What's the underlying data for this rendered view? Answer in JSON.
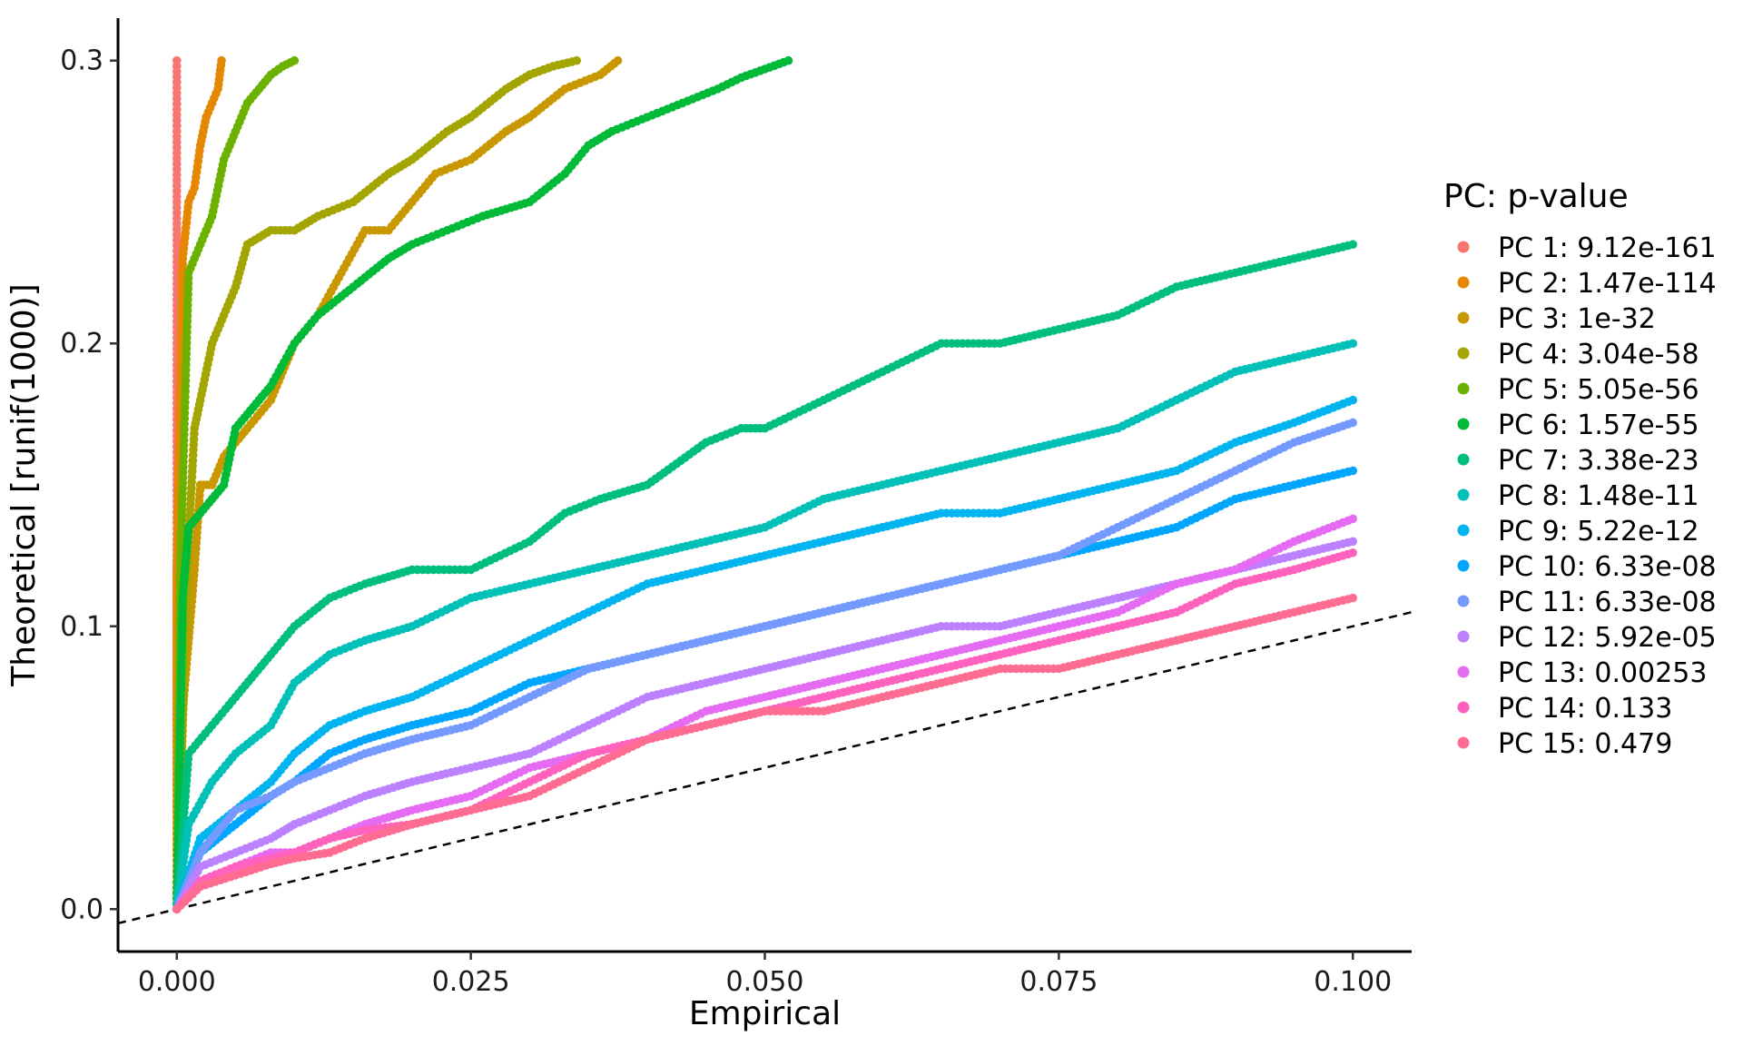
{
  "chart_data": {
    "type": "scatter",
    "title": "",
    "xlabel": "Empirical",
    "ylabel": "Theoretical [runif(1000)]",
    "xlim": [
      -0.005,
      0.105
    ],
    "ylim": [
      -0.015,
      0.315
    ],
    "x_ticks": [
      0,
      0.025,
      0.05,
      0.075,
      0.1
    ],
    "x_tick_labels": [
      "0.000",
      "0.025",
      "0.050",
      "0.075",
      "0.100"
    ],
    "y_ticks": [
      0,
      0.1,
      0.2,
      0.3
    ],
    "y_tick_labels": [
      "0.0",
      "0.1",
      "0.2",
      "0.3"
    ],
    "grid": false,
    "legend_title": "PC: p-value",
    "legend_position": "right",
    "reference_line": {
      "style": "dashed",
      "slope": 1,
      "intercept": 0
    },
    "series": [
      {
        "name": "PC 1: 9.12e-161",
        "color": "#F8766D",
        "x": [
          0,
          0,
          0,
          0,
          0,
          0,
          0
        ],
        "y": [
          0,
          0.05,
          0.1,
          0.15,
          0.2,
          0.25,
          0.3
        ]
      },
      {
        "name": "PC 2: 1.47e-114",
        "color": "#E58700",
        "x": [
          0,
          0,
          0.0005,
          0.001,
          0.0015,
          0.002,
          0.0025,
          0.003,
          0.0035,
          0.0038
        ],
        "y": [
          0,
          0.12,
          0.23,
          0.25,
          0.255,
          0.27,
          0.28,
          0.285,
          0.29,
          0.3
        ]
      },
      {
        "name": "PC 3: 1e-32",
        "color": "#C99800",
        "x": [
          0,
          0.0005,
          0.0015,
          0.002,
          0.003,
          0.004,
          0.005,
          0.006,
          0.008,
          0.01,
          0.012,
          0.014,
          0.016,
          0.018,
          0.02,
          0.022,
          0.025,
          0.028,
          0.03,
          0.033,
          0.036,
          0.0375
        ],
        "y": [
          0,
          0.07,
          0.12,
          0.15,
          0.15,
          0.16,
          0.165,
          0.17,
          0.18,
          0.2,
          0.21,
          0.225,
          0.24,
          0.24,
          0.25,
          0.26,
          0.265,
          0.275,
          0.28,
          0.29,
          0.295,
          0.3
        ]
      },
      {
        "name": "PC 4: 3.04e-58",
        "color": "#A3A500",
        "x": [
          0,
          0.001,
          0.0015,
          0.002,
          0.003,
          0.004,
          0.005,
          0.006,
          0.008,
          0.01,
          0.012,
          0.015,
          0.018,
          0.02,
          0.023,
          0.025,
          0.028,
          0.03,
          0.032,
          0.034
        ],
        "y": [
          0,
          0.13,
          0.17,
          0.18,
          0.2,
          0.21,
          0.22,
          0.235,
          0.24,
          0.24,
          0.245,
          0.25,
          0.26,
          0.265,
          0.275,
          0.28,
          0.29,
          0.295,
          0.298,
          0.3
        ]
      },
      {
        "name": "PC 5: 5.05e-56",
        "color": "#6BB100",
        "x": [
          0,
          0.0003,
          0.001,
          0.002,
          0.003,
          0.004,
          0.005,
          0.006,
          0.007,
          0.008,
          0.009,
          0.01
        ],
        "y": [
          0,
          0.12,
          0.225,
          0.235,
          0.245,
          0.265,
          0.275,
          0.285,
          0.29,
          0.295,
          0.298,
          0.3
        ]
      },
      {
        "name": "PC 6: 1.57e-55",
        "color": "#00BA38",
        "x": [
          0,
          0.0005,
          0.001,
          0.002,
          0.003,
          0.004,
          0.005,
          0.006,
          0.007,
          0.008,
          0.01,
          0.012,
          0.015,
          0.018,
          0.02,
          0.023,
          0.026,
          0.03,
          0.033,
          0.035,
          0.037,
          0.04,
          0.043,
          0.046,
          0.048,
          0.05,
          0.052
        ],
        "y": [
          0,
          0.11,
          0.135,
          0.14,
          0.145,
          0.15,
          0.17,
          0.175,
          0.18,
          0.185,
          0.2,
          0.21,
          0.22,
          0.23,
          0.235,
          0.24,
          0.245,
          0.25,
          0.26,
          0.27,
          0.275,
          0.28,
          0.285,
          0.29,
          0.294,
          0.297,
          0.3
        ]
      },
      {
        "name": "PC 7: 3.38e-23",
        "color": "#00BF7D",
        "x": [
          0,
          0.001,
          0.003,
          0.005,
          0.008,
          0.01,
          0.013,
          0.016,
          0.02,
          0.025,
          0.03,
          0.033,
          0.036,
          0.04,
          0.045,
          0.048,
          0.05,
          0.055,
          0.06,
          0.065,
          0.07,
          0.075,
          0.08,
          0.085,
          0.09,
          0.095,
          0.1
        ],
        "y": [
          0,
          0.055,
          0.065,
          0.075,
          0.09,
          0.1,
          0.11,
          0.115,
          0.12,
          0.12,
          0.13,
          0.14,
          0.145,
          0.15,
          0.165,
          0.17,
          0.17,
          0.18,
          0.19,
          0.2,
          0.2,
          0.205,
          0.21,
          0.22,
          0.225,
          0.23,
          0.235
        ]
      },
      {
        "name": "PC 8: 1.48e-11",
        "color": "#00C0B8",
        "x": [
          0,
          0.001,
          0.003,
          0.005,
          0.008,
          0.01,
          0.013,
          0.016,
          0.02,
          0.025,
          0.03,
          0.035,
          0.04,
          0.045,
          0.05,
          0.055,
          0.06,
          0.065,
          0.07,
          0.075,
          0.08,
          0.085,
          0.09,
          0.095,
          0.1
        ],
        "y": [
          0,
          0.03,
          0.045,
          0.055,
          0.065,
          0.08,
          0.09,
          0.095,
          0.1,
          0.11,
          0.115,
          0.12,
          0.125,
          0.13,
          0.135,
          0.145,
          0.15,
          0.155,
          0.16,
          0.165,
          0.17,
          0.18,
          0.19,
          0.195,
          0.2
        ]
      },
      {
        "name": "PC 9: 5.22e-12",
        "color": "#00B4EF",
        "x": [
          0,
          0.002,
          0.005,
          0.008,
          0.01,
          0.013,
          0.016,
          0.02,
          0.025,
          0.03,
          0.035,
          0.04,
          0.045,
          0.05,
          0.055,
          0.06,
          0.065,
          0.07,
          0.075,
          0.08,
          0.085,
          0.09,
          0.095,
          0.1
        ],
        "y": [
          0,
          0.025,
          0.035,
          0.045,
          0.055,
          0.065,
          0.07,
          0.075,
          0.085,
          0.095,
          0.105,
          0.115,
          0.12,
          0.125,
          0.13,
          0.135,
          0.14,
          0.14,
          0.145,
          0.15,
          0.155,
          0.165,
          0.172,
          0.18
        ]
      },
      {
        "name": "PC 10: 6.33e-08",
        "color": "#00A5FF",
        "x": [
          0,
          0.002,
          0.005,
          0.008,
          0.01,
          0.013,
          0.016,
          0.02,
          0.025,
          0.03,
          0.035,
          0.04,
          0.045,
          0.05,
          0.055,
          0.06,
          0.065,
          0.07,
          0.075,
          0.08,
          0.085,
          0.09,
          0.095,
          0.1
        ],
        "y": [
          0,
          0.02,
          0.03,
          0.04,
          0.045,
          0.055,
          0.06,
          0.065,
          0.07,
          0.08,
          0.085,
          0.09,
          0.095,
          0.1,
          0.105,
          0.11,
          0.115,
          0.12,
          0.125,
          0.13,
          0.135,
          0.145,
          0.15,
          0.155
        ]
      },
      {
        "name": "PC 11: 6.33e-08",
        "color": "#7499FF",
        "x": [
          0,
          0.002,
          0.005,
          0.008,
          0.01,
          0.013,
          0.016,
          0.02,
          0.025,
          0.03,
          0.035,
          0.04,
          0.045,
          0.05,
          0.055,
          0.06,
          0.065,
          0.07,
          0.075,
          0.08,
          0.085,
          0.09,
          0.095,
          0.1
        ],
        "y": [
          0,
          0.02,
          0.035,
          0.04,
          0.045,
          0.05,
          0.055,
          0.06,
          0.065,
          0.075,
          0.085,
          0.09,
          0.095,
          0.1,
          0.105,
          0.11,
          0.115,
          0.12,
          0.125,
          0.135,
          0.145,
          0.155,
          0.165,
          0.172
        ]
      },
      {
        "name": "PC 12: 5.92e-05",
        "color": "#BB81FF",
        "x": [
          0,
          0.002,
          0.005,
          0.008,
          0.01,
          0.013,
          0.016,
          0.02,
          0.025,
          0.03,
          0.035,
          0.04,
          0.045,
          0.05,
          0.055,
          0.06,
          0.065,
          0.07,
          0.075,
          0.08,
          0.085,
          0.09,
          0.095,
          0.1
        ],
        "y": [
          0,
          0.015,
          0.02,
          0.025,
          0.03,
          0.035,
          0.04,
          0.045,
          0.05,
          0.055,
          0.065,
          0.075,
          0.08,
          0.085,
          0.09,
          0.095,
          0.1,
          0.1,
          0.105,
          0.11,
          0.115,
          0.12,
          0.125,
          0.13
        ]
      },
      {
        "name": "PC 13: 0.00253",
        "color": "#E66BF3",
        "x": [
          0,
          0.002,
          0.005,
          0.008,
          0.01,
          0.013,
          0.016,
          0.02,
          0.025,
          0.03,
          0.035,
          0.04,
          0.045,
          0.05,
          0.055,
          0.06,
          0.065,
          0.07,
          0.075,
          0.08,
          0.085,
          0.09,
          0.095,
          0.1
        ],
        "y": [
          0,
          0.01,
          0.015,
          0.02,
          0.02,
          0.025,
          0.03,
          0.035,
          0.04,
          0.05,
          0.055,
          0.06,
          0.07,
          0.075,
          0.08,
          0.085,
          0.09,
          0.095,
          0.1,
          0.105,
          0.115,
          0.12,
          0.13,
          0.138
        ]
      },
      {
        "name": "PC 14: 0.133",
        "color": "#FF62BC",
        "x": [
          0,
          0.002,
          0.005,
          0.008,
          0.01,
          0.013,
          0.016,
          0.02,
          0.025,
          0.03,
          0.035,
          0.04,
          0.045,
          0.05,
          0.055,
          0.06,
          0.065,
          0.07,
          0.075,
          0.08,
          0.085,
          0.09,
          0.095,
          0.1
        ],
        "y": [
          0,
          0.01,
          0.015,
          0.018,
          0.02,
          0.025,
          0.028,
          0.03,
          0.035,
          0.045,
          0.055,
          0.06,
          0.065,
          0.07,
          0.075,
          0.08,
          0.085,
          0.09,
          0.095,
          0.1,
          0.105,
          0.115,
          0.12,
          0.126
        ]
      },
      {
        "name": "PC 15: 0.479",
        "color": "#FF6C91",
        "x": [
          0,
          0.002,
          0.005,
          0.008,
          0.01,
          0.013,
          0.016,
          0.02,
          0.025,
          0.03,
          0.035,
          0.04,
          0.045,
          0.05,
          0.055,
          0.06,
          0.065,
          0.07,
          0.075,
          0.08,
          0.085,
          0.09,
          0.095,
          0.1
        ],
        "y": [
          0,
          0.008,
          0.012,
          0.016,
          0.018,
          0.02,
          0.025,
          0.03,
          0.035,
          0.04,
          0.05,
          0.06,
          0.065,
          0.07,
          0.07,
          0.075,
          0.08,
          0.085,
          0.085,
          0.09,
          0.095,
          0.1,
          0.105,
          0.11
        ]
      }
    ]
  }
}
